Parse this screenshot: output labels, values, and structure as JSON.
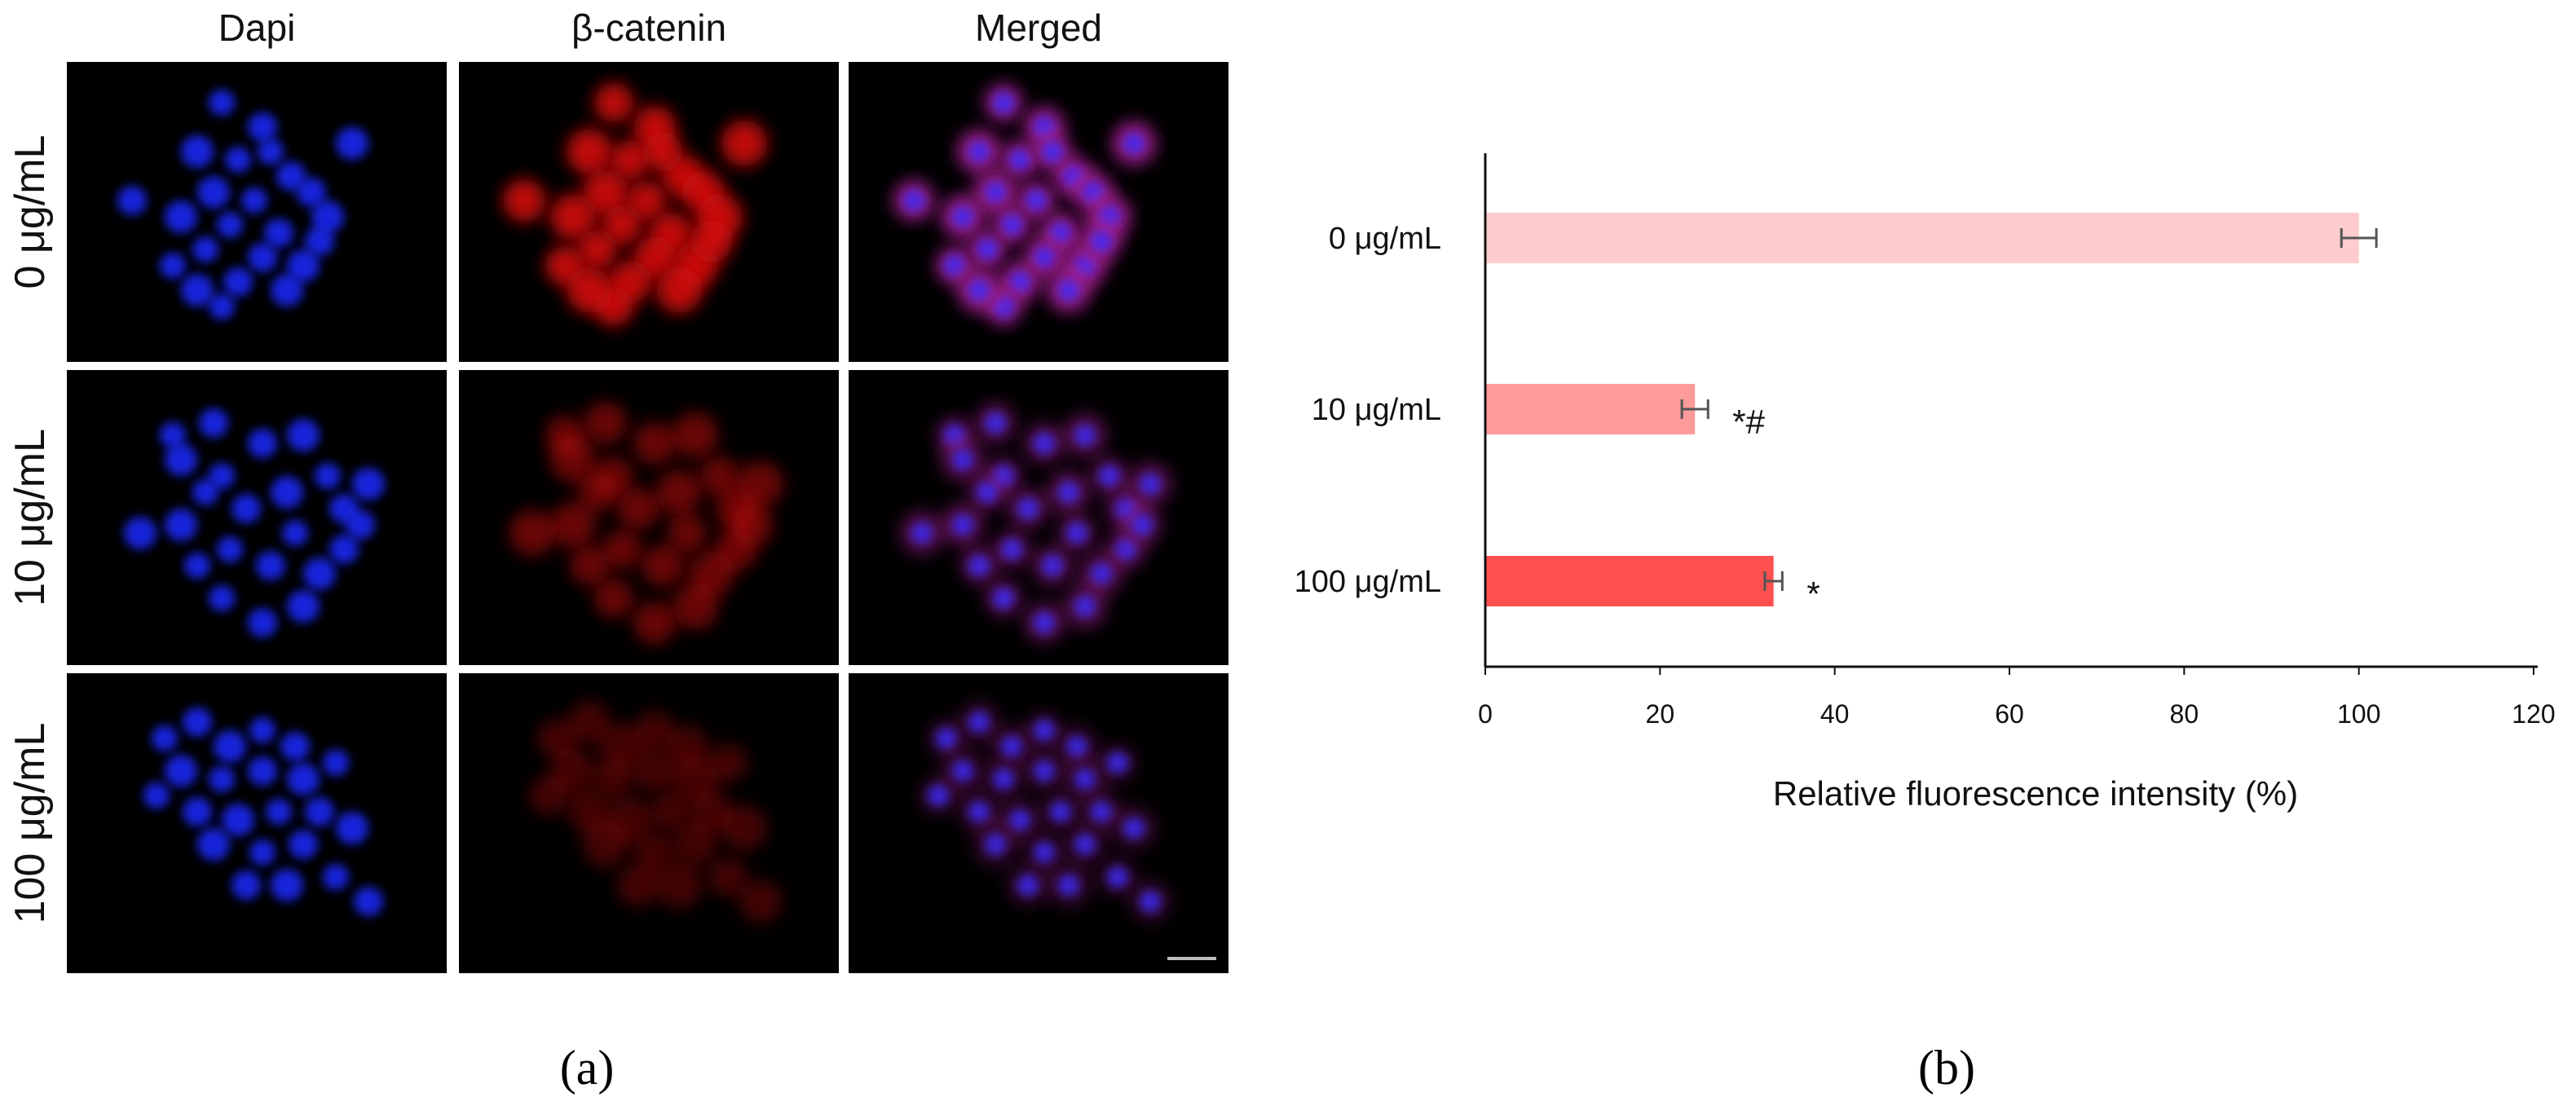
{
  "panel_a": {
    "letter": "(a)",
    "columns": [
      "Dapi",
      "β-catenin",
      "Merged"
    ],
    "rows": [
      "0 μg/mL",
      "10 μg/mL",
      "100 μg/mL"
    ]
  },
  "panel_b": {
    "letter": "(b)"
  },
  "chart_data": {
    "type": "bar",
    "orientation": "horizontal",
    "categories": [
      "0 μg/mL",
      "10 μg/mL",
      "100 μg/mL"
    ],
    "values": [
      100,
      24,
      33
    ],
    "errors": [
      2,
      1.5,
      1
    ],
    "annotations": [
      "",
      "*#",
      "*"
    ],
    "colors": [
      "#fecccc",
      "#fe9a9a",
      "#ff5050"
    ],
    "xlabel": "Relative fluorescence intensity (%)",
    "xlim": [
      0,
      120
    ],
    "xticks": [
      0,
      20,
      40,
      60,
      80,
      100,
      120
    ],
    "grid": false
  }
}
